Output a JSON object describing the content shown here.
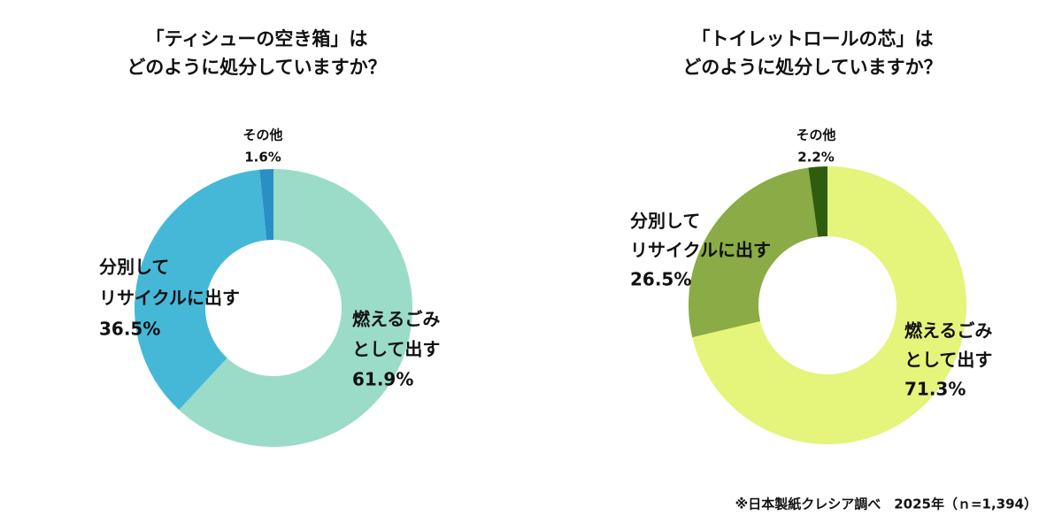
{
  "chart_data": [
    {
      "type": "donut",
      "title": [
        "「ティシューの空き箱」は",
        "どのように処分していますか？"
      ],
      "categories": [
        [
          "燃えるごみ",
          "として出す"
        ],
        [
          "分別して",
          "リサイクルに出す"
        ],
        [
          "その他"
        ]
      ],
      "values": [
        61.9,
        36.5,
        1.6
      ],
      "value_labels": [
        "61.9%",
        "36.5%",
        "1.6%"
      ],
      "colors": [
        "#9adcc8",
        "#45b8d8",
        "#2a8fc4"
      ]
    },
    {
      "type": "donut",
      "title": [
        "「トイレットロールの芯」は",
        "どのように処分していますか？"
      ],
      "categories": [
        [
          "燃えるごみ",
          "として出す"
        ],
        [
          "分別して",
          "リサイクルに出す"
        ],
        [
          "その他"
        ]
      ],
      "values": [
        71.3,
        26.5,
        2.2
      ],
      "value_labels": [
        "71.3%",
        "26.5%",
        "2.2%"
      ],
      "colors": [
        "#e5f47a",
        "#8aab45",
        "#2f5d0e"
      ]
    }
  ],
  "footnote": "※日本製紙クレシア調べ　2025年（ｎ=1,394）"
}
